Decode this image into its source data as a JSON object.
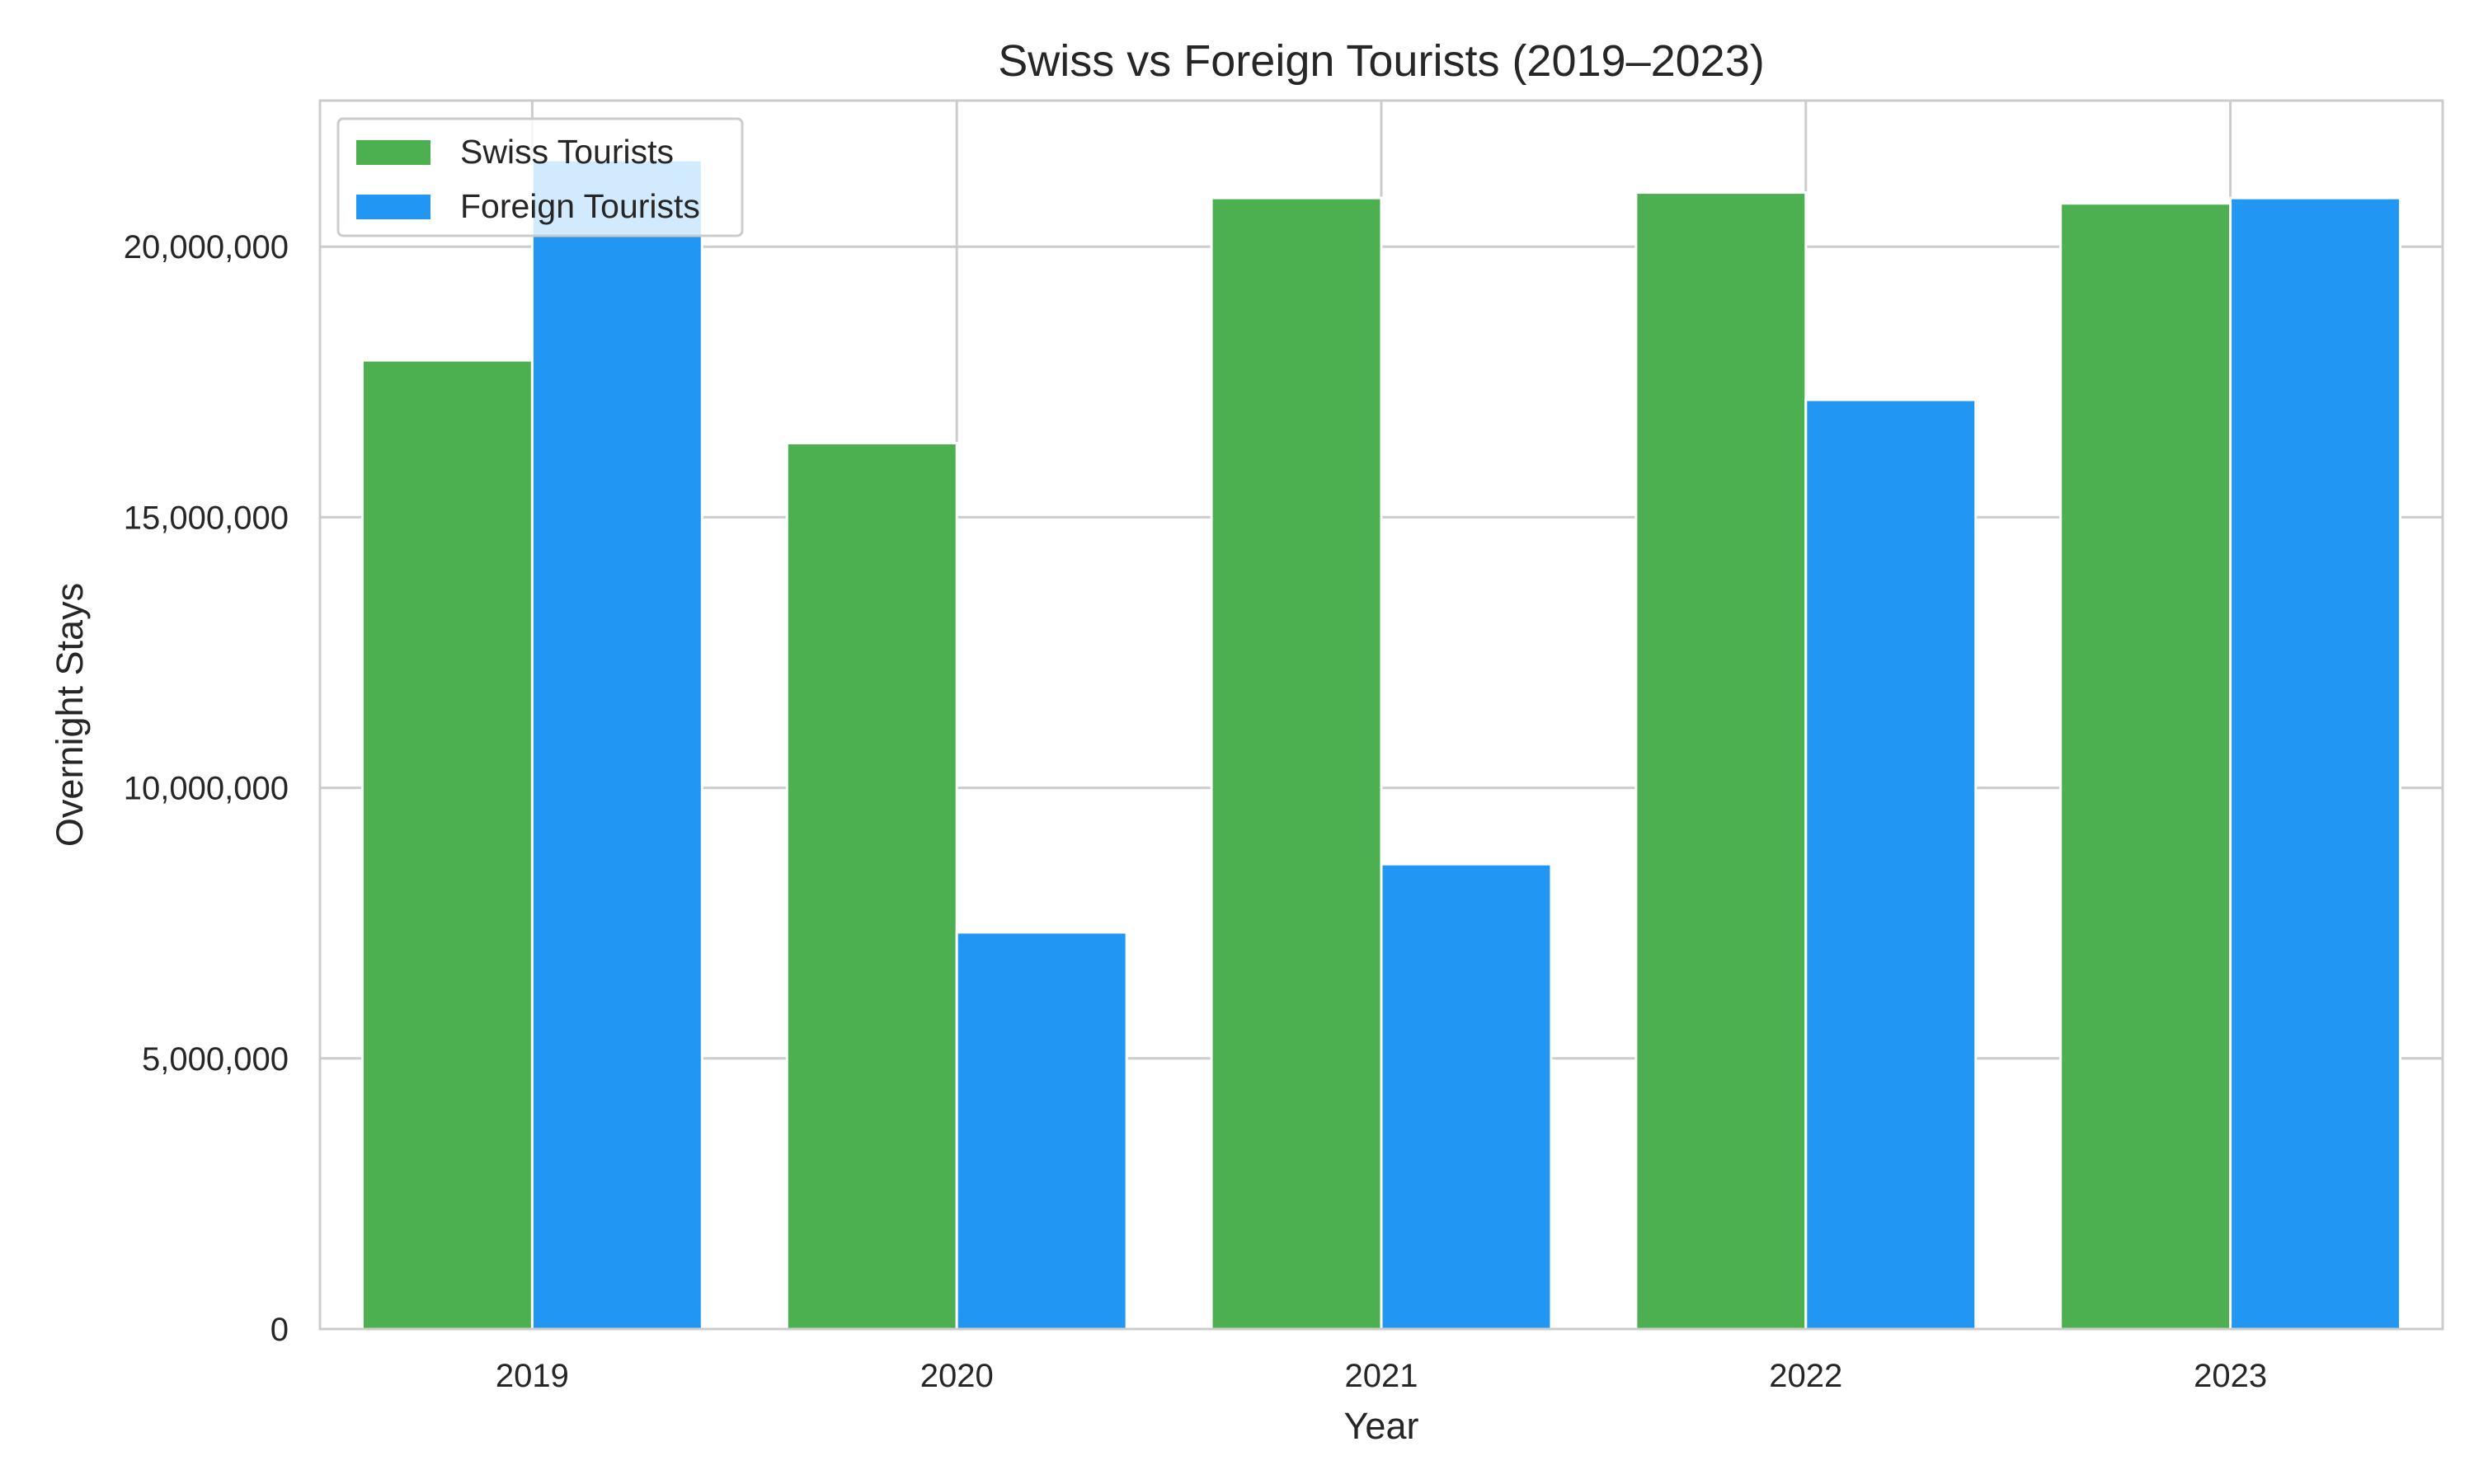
{
  "chart_data": {
    "type": "bar",
    "title": "Swiss vs Foreign Tourists (2019–2023)",
    "xlabel": "Year",
    "ylabel": "Overnight Stays",
    "categories": [
      "2019",
      "2020",
      "2021",
      "2022",
      "2023"
    ],
    "series": [
      {
        "name": "Swiss Tourists",
        "color": "#4caf50",
        "values": [
          17900000,
          16370000,
          20900000,
          21000000,
          20800000
        ]
      },
      {
        "name": "Foreign Tourists",
        "color": "#2196f3",
        "values": [
          21600000,
          7330000,
          8590000,
          17170000,
          20900000
        ]
      }
    ],
    "ylim": [
      0,
      22700000
    ],
    "yticks": [
      0,
      5000000,
      10000000,
      15000000,
      20000000
    ],
    "ytick_labels": [
      "0",
      "5,000,000",
      "10,000,000",
      "15,000,000",
      "20,000,000"
    ],
    "grid": true,
    "legend_position": "top-left"
  }
}
